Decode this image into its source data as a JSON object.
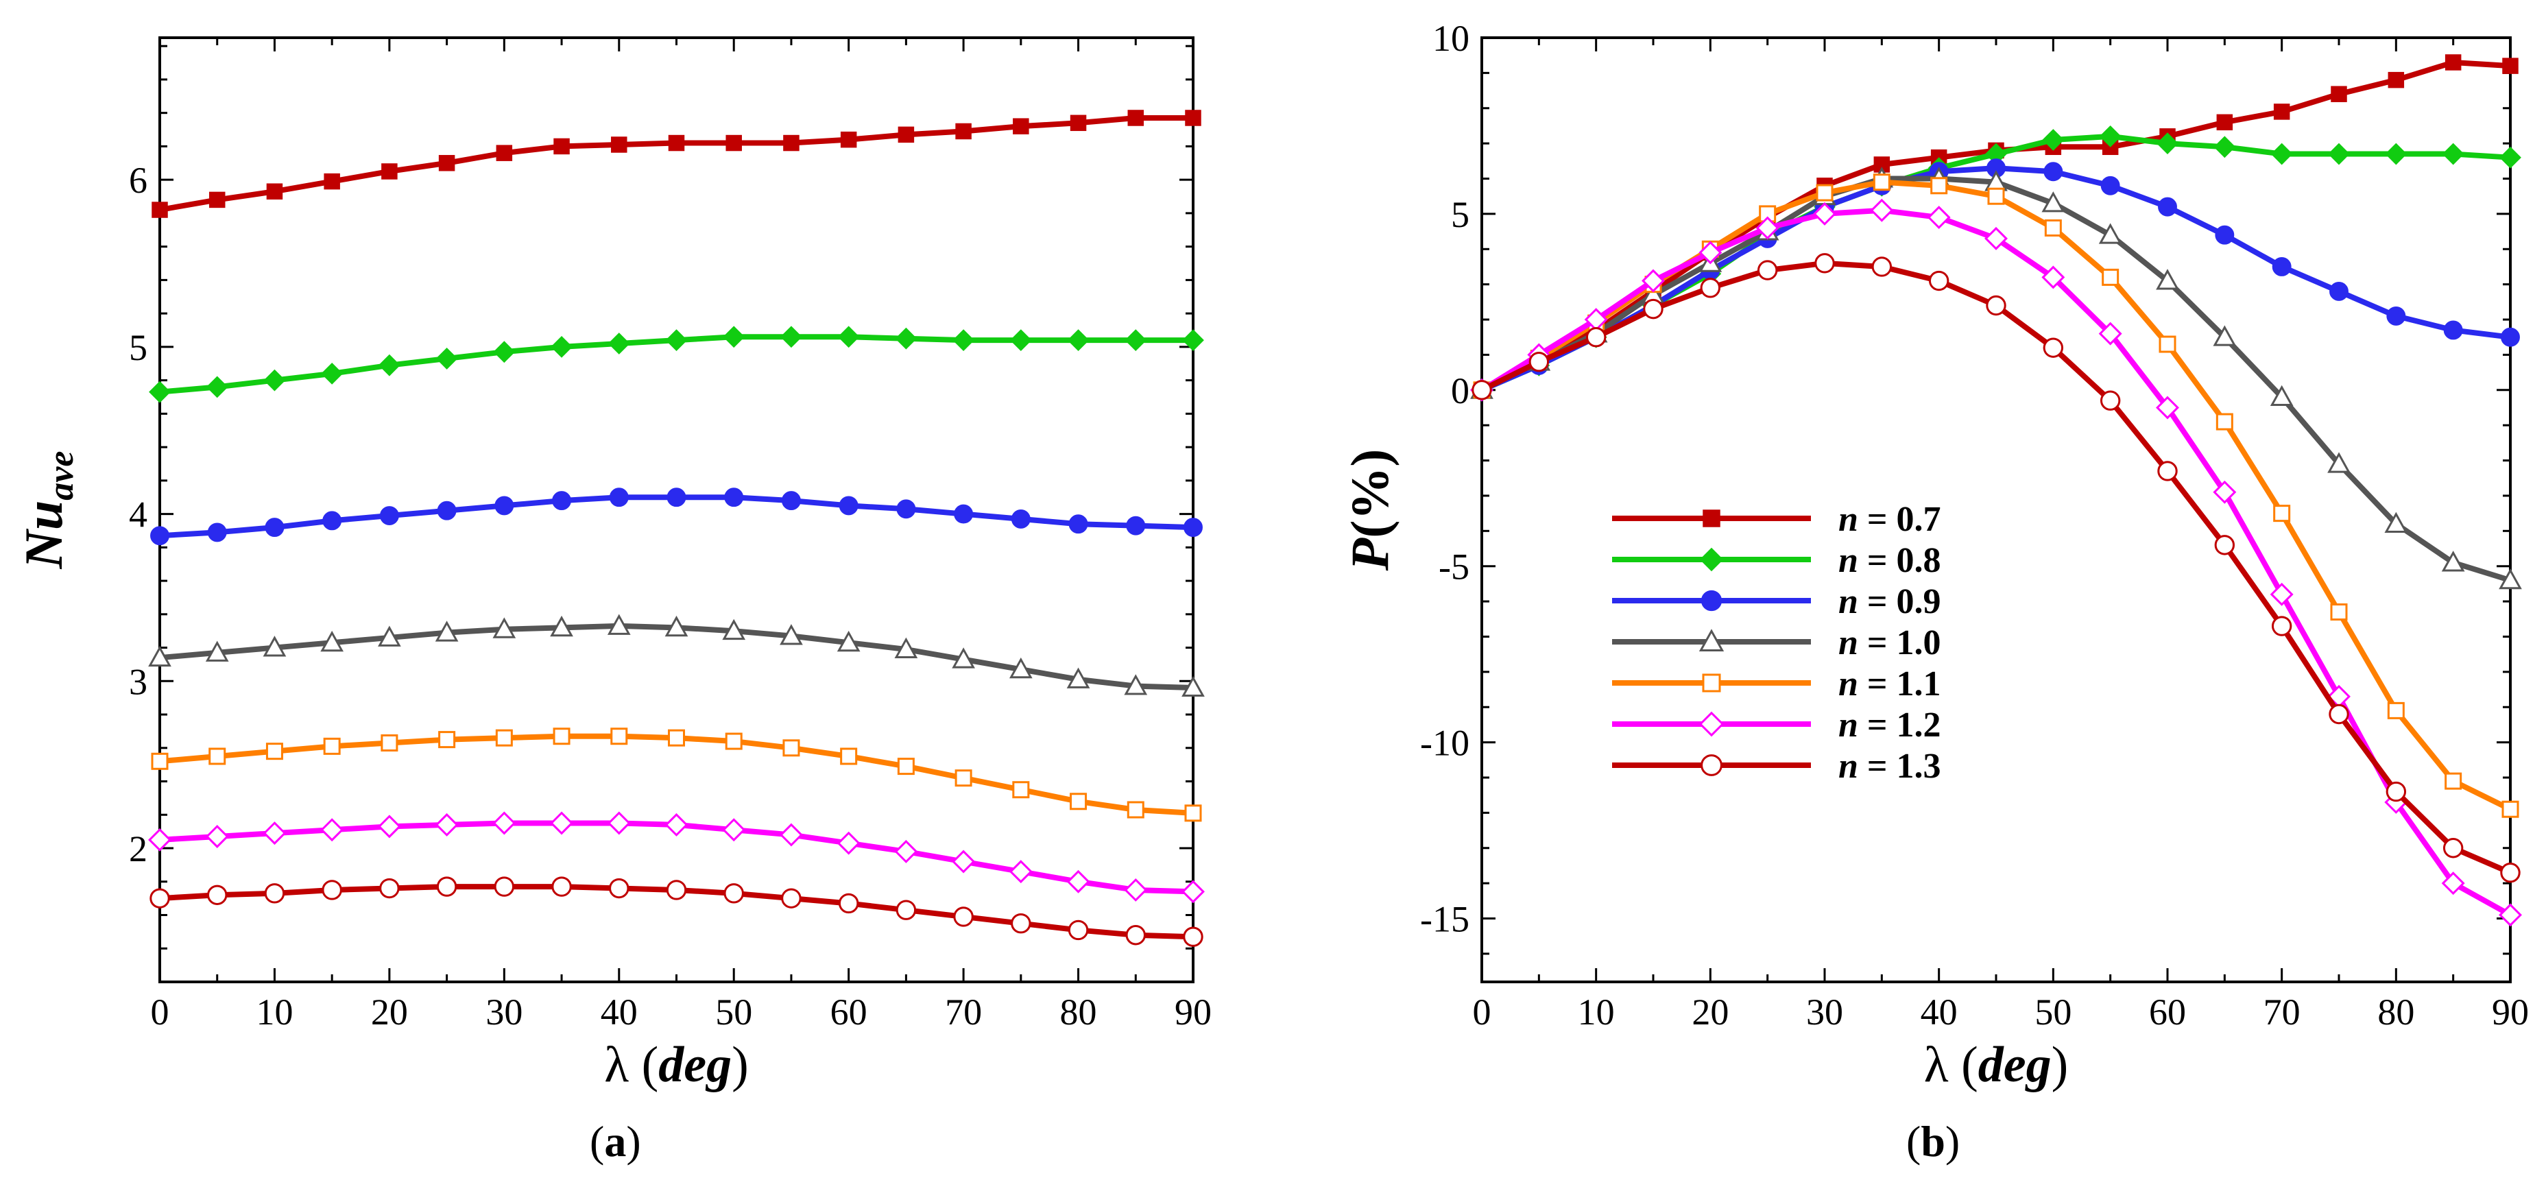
{
  "chart_data": [
    {
      "id": "a",
      "type": "line",
      "panel_label": "a",
      "xlabel": "λ (deg)",
      "ylabel": "Nu_ave",
      "xlim": [
        0,
        90
      ],
      "ylim": [
        1.2,
        6.85
      ],
      "xticks": [
        0,
        10,
        20,
        30,
        40,
        50,
        60,
        70,
        80,
        90
      ],
      "yticks": [
        2,
        3,
        4,
        5,
        6
      ],
      "x": [
        0,
        5,
        10,
        15,
        20,
        25,
        30,
        35,
        40,
        45,
        50,
        55,
        60,
        65,
        70,
        75,
        80,
        85,
        90
      ],
      "series": [
        {
          "name": "n = 0.7",
          "color": "#c00000",
          "marker": "square-filled",
          "values": [
            5.82,
            5.88,
            5.93,
            5.99,
            6.05,
            6.1,
            6.16,
            6.2,
            6.21,
            6.22,
            6.22,
            6.22,
            6.24,
            6.27,
            6.29,
            6.32,
            6.34,
            6.37,
            6.37
          ]
        },
        {
          "name": "n = 0.8",
          "color": "#11cc11",
          "marker": "diamond-filled",
          "values": [
            4.73,
            4.76,
            4.8,
            4.84,
            4.89,
            4.93,
            4.97,
            5.0,
            5.02,
            5.04,
            5.06,
            5.06,
            5.06,
            5.05,
            5.04,
            5.04,
            5.04,
            5.04,
            5.04
          ]
        },
        {
          "name": "n = 0.9",
          "color": "#2a2aee",
          "marker": "circle-filled",
          "values": [
            3.87,
            3.89,
            3.92,
            3.96,
            3.99,
            4.02,
            4.05,
            4.08,
            4.1,
            4.1,
            4.1,
            4.08,
            4.05,
            4.03,
            4.0,
            3.97,
            3.94,
            3.93,
            3.92
          ]
        },
        {
          "name": "n = 1.0",
          "color": "#555555",
          "marker": "triangle-open",
          "values": [
            3.14,
            3.17,
            3.2,
            3.23,
            3.26,
            3.29,
            3.31,
            3.32,
            3.33,
            3.32,
            3.3,
            3.27,
            3.23,
            3.19,
            3.13,
            3.07,
            3.01,
            2.97,
            2.96
          ]
        },
        {
          "name": "n = 1.1",
          "color": "#ff7f00",
          "marker": "square-open",
          "values": [
            2.52,
            2.55,
            2.58,
            2.61,
            2.63,
            2.65,
            2.66,
            2.67,
            2.67,
            2.66,
            2.64,
            2.6,
            2.55,
            2.49,
            2.42,
            2.35,
            2.28,
            2.23,
            2.21
          ]
        },
        {
          "name": "n = 1.2",
          "color": "#ff00ff",
          "marker": "diamond-open",
          "values": [
            2.05,
            2.07,
            2.09,
            2.11,
            2.13,
            2.14,
            2.15,
            2.15,
            2.15,
            2.14,
            2.11,
            2.08,
            2.03,
            1.98,
            1.92,
            1.86,
            1.8,
            1.75,
            1.74
          ]
        },
        {
          "name": "n = 1.3",
          "color": "#c00000",
          "marker": "circle-open",
          "values": [
            1.7,
            1.72,
            1.73,
            1.75,
            1.76,
            1.77,
            1.77,
            1.77,
            1.76,
            1.75,
            1.73,
            1.7,
            1.67,
            1.63,
            1.59,
            1.55,
            1.51,
            1.48,
            1.47
          ]
        }
      ]
    },
    {
      "id": "b",
      "type": "line",
      "panel_label": "b",
      "xlabel": "λ (deg)",
      "ylabel": "P(%)",
      "xlim": [
        0,
        90
      ],
      "ylim": [
        -16.8,
        10
      ],
      "xticks": [
        0,
        10,
        20,
        30,
        40,
        50,
        60,
        70,
        80,
        90
      ],
      "yticks": [
        10,
        5,
        0,
        -5,
        -10,
        -15
      ],
      "legend_position": "lower-left",
      "x": [
        0,
        5,
        10,
        15,
        20,
        25,
        30,
        35,
        40,
        45,
        50,
        55,
        60,
        65,
        70,
        75,
        80,
        85,
        90
      ],
      "series": [
        {
          "name": "n = 0.7",
          "color": "#c00000",
          "marker": "square-filled",
          "values": [
            0,
            0.9,
            1.7,
            2.8,
            3.9,
            4.9,
            5.8,
            6.4,
            6.6,
            6.8,
            6.9,
            6.9,
            7.2,
            7.6,
            7.9,
            8.4,
            8.8,
            9.3,
            9.2
          ]
        },
        {
          "name": "n = 0.8",
          "color": "#11cc11",
          "marker": "diamond-filled",
          "values": [
            0,
            0.7,
            1.5,
            2.4,
            3.3,
            4.4,
            5.2,
            5.8,
            6.3,
            6.7,
            7.1,
            7.2,
            7.0,
            6.9,
            6.7,
            6.7,
            6.7,
            6.7,
            6.6
          ]
        },
        {
          "name": "n = 0.9",
          "color": "#2a2aee",
          "marker": "circle-filled",
          "values": [
            0,
            0.7,
            1.5,
            2.4,
            3.4,
            4.3,
            5.2,
            5.8,
            6.2,
            6.3,
            6.2,
            5.8,
            5.2,
            4.4,
            3.5,
            2.8,
            2.1,
            1.7,
            1.5
          ]
        },
        {
          "name": "n = 1.0",
          "color": "#555555",
          "marker": "triangle-open",
          "values": [
            0,
            0.8,
            1.6,
            2.7,
            3.6,
            4.5,
            5.5,
            6.0,
            6.0,
            5.9,
            5.3,
            4.4,
            3.1,
            1.5,
            -0.2,
            -2.1,
            -3.8,
            -4.9,
            -5.4
          ]
        },
        {
          "name": "n = 1.1",
          "color": "#ff7f00",
          "marker": "square-open",
          "values": [
            0,
            0.9,
            1.9,
            3.0,
            4.0,
            5.0,
            5.6,
            5.9,
            5.8,
            5.5,
            4.6,
            3.2,
            1.3,
            -0.9,
            -3.5,
            -6.3,
            -9.1,
            -11.1,
            -11.9
          ]
        },
        {
          "name": "n = 1.2",
          "color": "#ff00ff",
          "marker": "diamond-open",
          "values": [
            0,
            1.0,
            2.0,
            3.1,
            3.9,
            4.6,
            5.0,
            5.1,
            4.9,
            4.3,
            3.2,
            1.6,
            -0.5,
            -2.9,
            -5.8,
            -8.7,
            -11.7,
            -14.0,
            -14.9
          ]
        },
        {
          "name": "n = 1.3",
          "color": "#c00000",
          "marker": "circle-open",
          "values": [
            0,
            0.8,
            1.5,
            2.3,
            2.9,
            3.4,
            3.6,
            3.5,
            3.1,
            2.4,
            1.2,
            -0.3,
            -2.3,
            -4.4,
            -6.7,
            -9.2,
            -11.4,
            -13.0,
            -13.7
          ]
        }
      ]
    }
  ]
}
